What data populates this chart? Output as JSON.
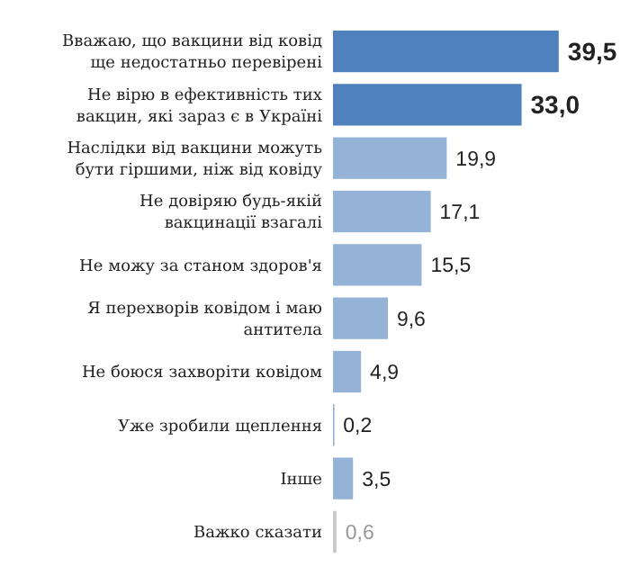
{
  "chart_data": {
    "type": "bar",
    "orientation": "horizontal",
    "categories": [
      "Вважаю, що вакцини від ковід\nще недостатньо перевірені",
      "Не вірю в ефективність  тих\nвакцин, які зараз є в Україні",
      "Наслідки від вакцини можуть\nбути гіршими, ніж від ковіду",
      "Не довіряю будь-якій\nвакцинації взагалі",
      "Не можу за станом здоров'я",
      "Я перехворів ковідом і маю\nантитела",
      "Не боюся захворіти ковідом",
      "Уже зробили щеплення",
      "Інше",
      "Важко сказати"
    ],
    "values": [
      39.5,
      33.0,
      19.9,
      17.1,
      15.5,
      9.6,
      4.9,
      0.2,
      3.5,
      0.6
    ],
    "value_labels": [
      "39,5",
      "33,0",
      "19,9",
      "17,1",
      "15,5",
      "9,6",
      "4,9",
      "0,2",
      "3,5",
      "0,6"
    ],
    "colors": [
      "#4f81bd",
      "#4f81bd",
      "#95b3d7",
      "#95b3d7",
      "#95b3d7",
      "#95b3d7",
      "#95b3d7",
      "#95b3d7",
      "#95b3d7",
      "#c8c8c8"
    ],
    "xlim": [
      0,
      40
    ]
  }
}
